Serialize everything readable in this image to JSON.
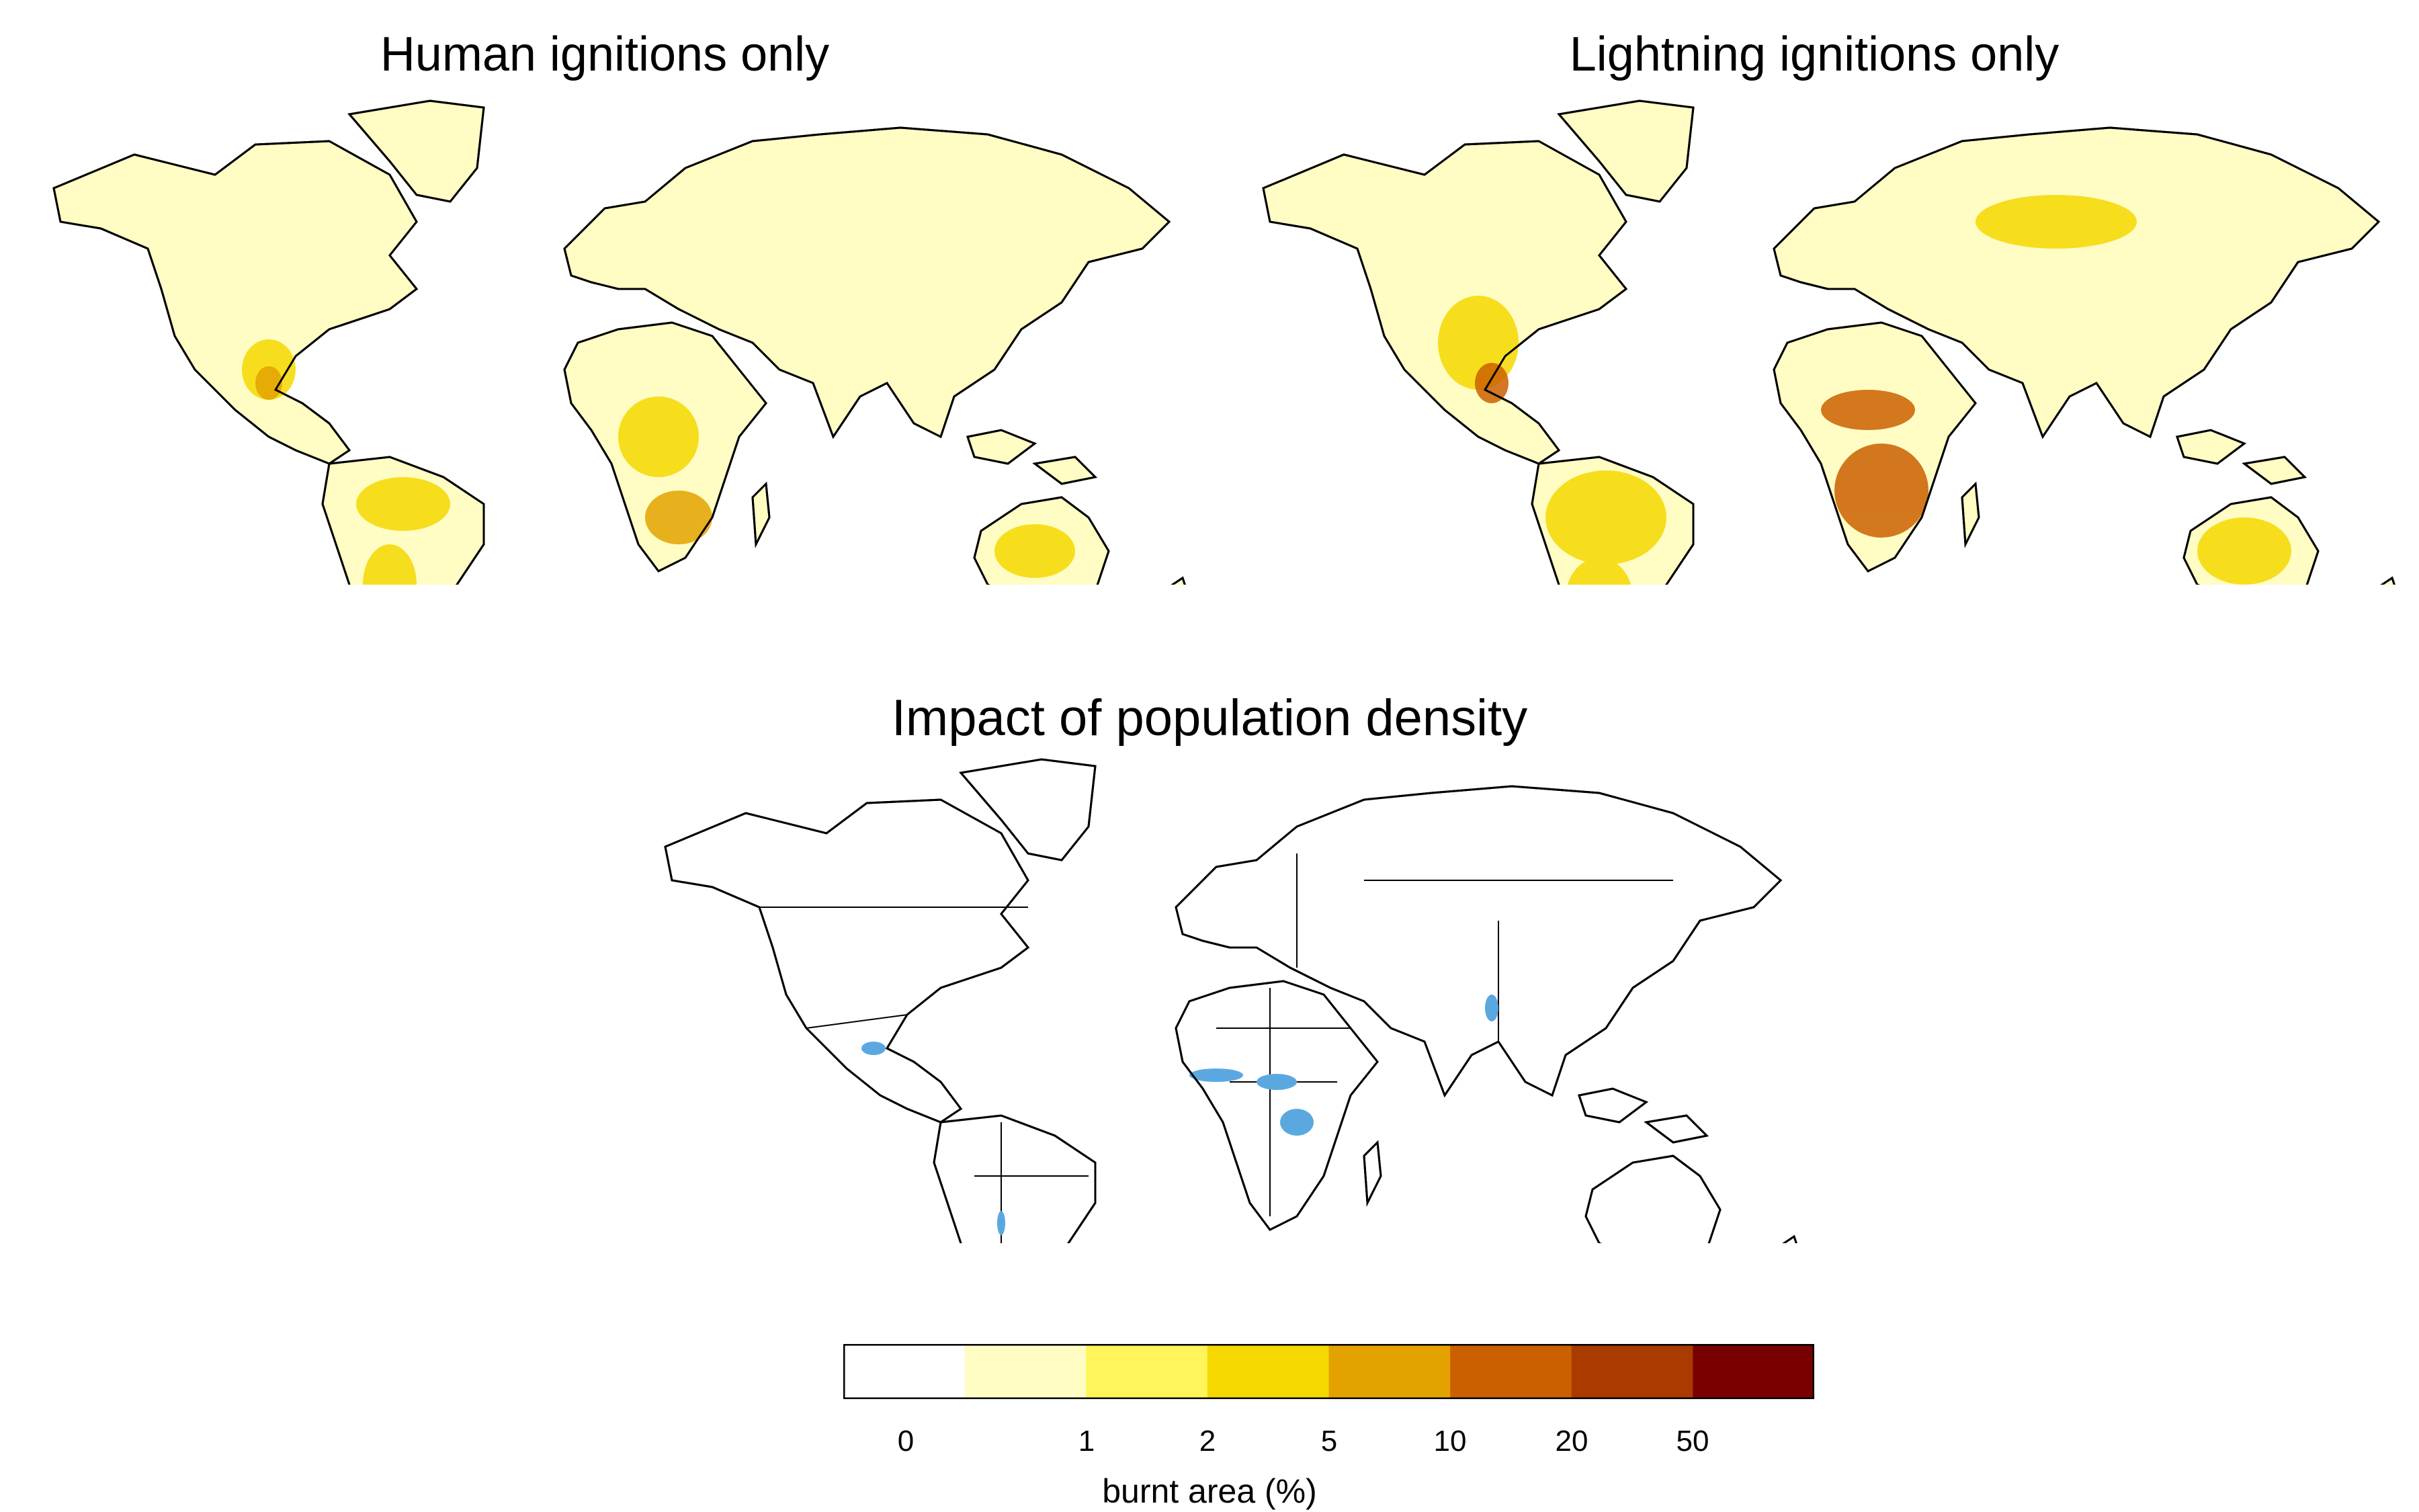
{
  "panels": [
    {
      "title": "Human ignitions only"
    },
    {
      "title": "Lightning ignitions only"
    },
    {
      "title": "Impact of population density"
    }
  ],
  "legend": {
    "title": "burnt area (%)",
    "colors": [
      "#ffffff",
      "#fffcc4",
      "#fff45a",
      "#f5d800",
      "#e3a200",
      "#cb6000",
      "#a93a00",
      "#780000"
    ],
    "tick_labels": [
      "0",
      "1",
      "2",
      "5",
      "10",
      "20",
      "50"
    ]
  },
  "colors": {
    "land_outline": "#000000",
    "impact_blue": "#5ba8e0"
  }
}
